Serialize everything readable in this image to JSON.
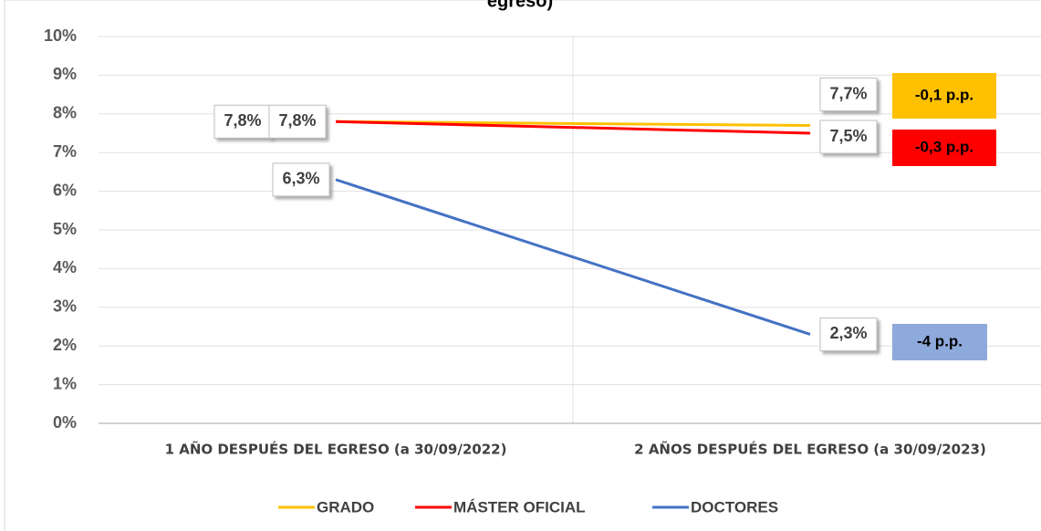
{
  "chart_data": {
    "type": "line",
    "title": "egreso)",
    "categories": [
      "1 AÑO DESPUÉS DEL EGRESO (a 30/09/2022)",
      "2 AÑOS DESPUÉS DEL EGRESO (a 30/09/2023)"
    ],
    "series": [
      {
        "name": "GRADO",
        "color": "#FFC000",
        "values": [
          7.8,
          7.7
        ],
        "value_labels": [
          "7,8%",
          "7,7%"
        ]
      },
      {
        "name": "MÁSTER OFICIAL",
        "color": "#FF0000",
        "values": [
          7.8,
          7.5
        ],
        "value_labels": [
          "7,8%",
          "7,5%"
        ]
      },
      {
        "name": "DOCTORES",
        "color": "#4472C4",
        "values": [
          6.3,
          2.3
        ],
        "value_labels": [
          "6,3%",
          "2,3%"
        ]
      }
    ],
    "annotations": [
      {
        "text": "-0,1 p.p.",
        "color": "#FFC000"
      },
      {
        "text": "-0,3 p.p.",
        "color": "#FF0000"
      },
      {
        "text": "-4 p.p.",
        "color": "#8EA9DB"
      }
    ],
    "ylim": [
      0,
      10
    ],
    "yticks": [
      {
        "value": 0,
        "label": "0%"
      },
      {
        "value": 1,
        "label": "1%"
      },
      {
        "value": 2,
        "label": "2%"
      },
      {
        "value": 3,
        "label": "3%"
      },
      {
        "value": 4,
        "label": "4%"
      },
      {
        "value": 5,
        "label": "5%"
      },
      {
        "value": 6,
        "label": "6%"
      },
      {
        "value": 7,
        "label": "7%"
      },
      {
        "value": 8,
        "label": "8%"
      },
      {
        "value": 9,
        "label": "9%"
      },
      {
        "value": 10,
        "label": "10%"
      }
    ],
    "grid": true,
    "legend": "bottom"
  }
}
